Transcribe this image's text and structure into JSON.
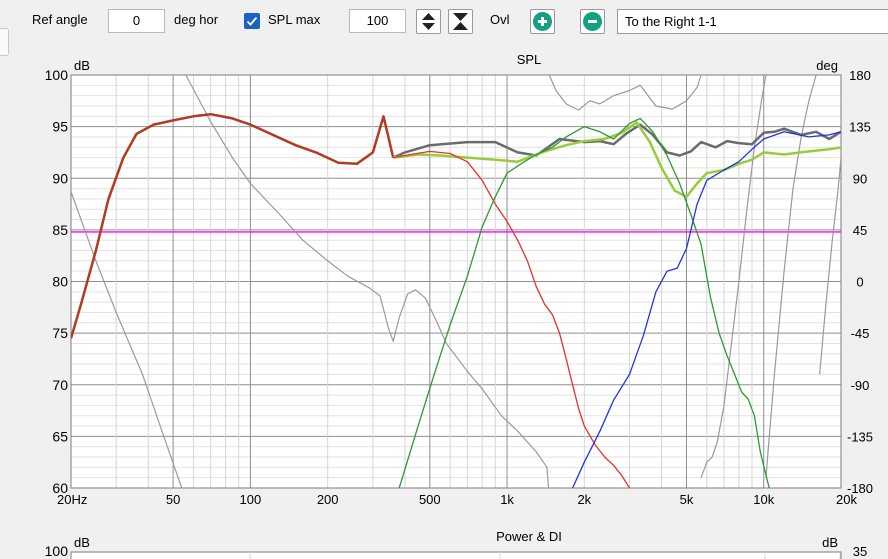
{
  "toolbar": {
    "ref_angle_label": "Ref angle",
    "ref_angle_value": "0",
    "deg_hor_label": "deg hor",
    "spl_max_checked": true,
    "spl_max_label": "SPL max",
    "spl_max_value": "100",
    "ovl_label": "Ovl",
    "overlay_select": "To the Right 1-1"
  },
  "colors": {
    "red": "#e8312a",
    "green": "#2e9a2e",
    "lightgreen": "#98cc3c",
    "gray_thick": "#6b6b6b",
    "blue": "#2236e0",
    "brown": "#b23a22",
    "magenta": "#ff00ff",
    "phase_gray": "#9a9a9a"
  },
  "chart_data": [
    {
      "type": "line",
      "title": "SPL",
      "ylabel": "dB",
      "y2label": "deg",
      "xscale": "log",
      "xlim": [
        20,
        20000
      ],
      "ylim": [
        60,
        100
      ],
      "y2lim": [
        -180,
        180
      ],
      "grid": true,
      "xtick_labels": [
        "20Hz",
        "50",
        "100",
        "200",
        "500",
        "1k",
        "2k",
        "5k",
        "10k",
        "20k"
      ],
      "ytick_labels": [
        "100",
        "95",
        "90",
        "85",
        "80",
        "75",
        "70",
        "65",
        "60"
      ],
      "y2tick_labels": [
        "180",
        "135",
        "90",
        "45",
        "0",
        "-45",
        "-90",
        "-135",
        "-180"
      ],
      "hline": {
        "y": 84.8,
        "color": "#ff00ff"
      },
      "series": [
        {
          "color": "#b23a22",
          "width": 2.5,
          "points": [
            [
              20,
              74.5
            ],
            [
              22,
              78
            ],
            [
              25,
              83
            ],
            [
              28,
              88
            ],
            [
              32,
              92
            ],
            [
              36,
              94.3
            ],
            [
              42,
              95.2
            ],
            [
              50,
              95.6
            ],
            [
              60,
              96
            ],
            [
              70,
              96.2
            ],
            [
              85,
              95.8
            ],
            [
              100,
              95.2
            ],
            [
              120,
              94.3
            ],
            [
              150,
              93.2
            ],
            [
              180,
              92.5
            ],
            [
              220,
              91.5
            ],
            [
              260,
              91.4
            ],
            [
              300,
              92.5
            ],
            [
              330,
              96
            ],
            [
              345,
              94
            ],
            [
              360,
              92
            ]
          ]
        },
        {
          "color": "#6b6b6b",
          "width": 2.5,
          "points": [
            [
              360,
              92
            ],
            [
              400,
              92.5
            ],
            [
              500,
              93.2
            ],
            [
              700,
              93.5
            ],
            [
              900,
              93.5
            ],
            [
              1100,
              92.5
            ],
            [
              1300,
              92.2
            ],
            [
              1600,
              93.8
            ],
            [
              2000,
              93.5
            ],
            [
              2300,
              93.6
            ],
            [
              2600,
              93.3
            ],
            [
              2900,
              94.3
            ],
            [
              3300,
              95.2
            ],
            [
              3700,
              94.2
            ],
            [
              4200,
              92.5
            ],
            [
              4700,
              92.2
            ],
            [
              5200,
              92.6
            ],
            [
              5700,
              93.5
            ],
            [
              6500,
              93
            ],
            [
              7200,
              93.6
            ],
            [
              8000,
              93.4
            ],
            [
              9000,
              93.3
            ],
            [
              10000,
              94.4
            ],
            [
              11000,
              94.5
            ],
            [
              12000,
              94.8
            ],
            [
              14000,
              94.2
            ],
            [
              16000,
              94.5
            ],
            [
              18000,
              93.8
            ],
            [
              20000,
              94.5
            ]
          ]
        },
        {
          "color": "#98cc3c",
          "width": 2.5,
          "points": [
            [
              360,
              92
            ],
            [
              450,
              92.3
            ],
            [
              550,
              92.2
            ],
            [
              700,
              92
            ],
            [
              900,
              91.8
            ],
            [
              1100,
              91.6
            ],
            [
              1400,
              92.6
            ],
            [
              1700,
              93.2
            ],
            [
              2000,
              93.6
            ],
            [
              2400,
              93.8
            ],
            [
              2800,
              94.4
            ],
            [
              3200,
              95.4
            ],
            [
              3600,
              93.5
            ],
            [
              4000,
              91
            ],
            [
              4500,
              88.8
            ],
            [
              5000,
              88.2
            ],
            [
              5500,
              89.5
            ],
            [
              6000,
              90.5
            ],
            [
              7000,
              90.8
            ],
            [
              8000,
              91.4
            ],
            [
              9000,
              91.8
            ],
            [
              10000,
              92.5
            ],
            [
              12000,
              92.3
            ],
            [
              15000,
              92.6
            ],
            [
              18000,
              92.8
            ],
            [
              20000,
              93
            ]
          ]
        },
        {
          "color": "#e8312a",
          "width": 1.3,
          "points": [
            [
              360,
              92
            ],
            [
              400,
              92.2
            ],
            [
              500,
              92.6
            ],
            [
              600,
              92.4
            ],
            [
              700,
              91.6
            ],
            [
              800,
              89.8
            ],
            [
              900,
              87.5
            ],
            [
              1000,
              85.8
            ],
            [
              1100,
              84
            ],
            [
              1200,
              82
            ],
            [
              1300,
              79.5
            ],
            [
              1400,
              77.8
            ],
            [
              1500,
              76.8
            ],
            [
              1600,
              75
            ],
            [
              1700,
              72.5
            ],
            [
              1800,
              70
            ],
            [
              1900,
              67.7
            ],
            [
              2000,
              66
            ],
            [
              2200,
              64.2
            ],
            [
              2400,
              63
            ],
            [
              2600,
              62.2
            ],
            [
              2800,
              61.2
            ],
            [
              3000,
              60
            ]
          ]
        },
        {
          "color": "#2e9a2e",
          "width": 1.3,
          "points": [
            [
              380,
              60
            ],
            [
              450,
              66
            ],
            [
              520,
              71
            ],
            [
              600,
              75.8
            ],
            [
              700,
              80.5
            ],
            [
              800,
              85.3
            ],
            [
              900,
              88.2
            ],
            [
              1000,
              90.5
            ],
            [
              1150,
              91.5
            ],
            [
              1300,
              92.3
            ],
            [
              1500,
              93
            ],
            [
              1700,
              94
            ],
            [
              2000,
              95
            ],
            [
              2300,
              94.5
            ],
            [
              2600,
              93.8
            ],
            [
              3000,
              95.3
            ],
            [
              3300,
              95.8
            ],
            [
              3700,
              94.5
            ],
            [
              4200,
              92.2
            ],
            [
              4700,
              89.5
            ],
            [
              5200,
              86.5
            ],
            [
              5700,
              83.6
            ],
            [
              6200,
              78.5
            ],
            [
              6700,
              75
            ],
            [
              7200,
              72.8
            ],
            [
              7700,
              71
            ],
            [
              8200,
              69.3
            ],
            [
              8700,
              68.6
            ],
            [
              9200,
              67
            ],
            [
              9700,
              63.5
            ],
            [
              10500,
              60
            ]
          ]
        },
        {
          "color": "#2236e0",
          "width": 1.3,
          "points": [
            [
              1800,
              60
            ],
            [
              2000,
              62.5
            ],
            [
              2300,
              65.5
            ],
            [
              2600,
              68.5
            ],
            [
              3000,
              71
            ],
            [
              3400,
              74.8
            ],
            [
              3800,
              79
            ],
            [
              4200,
              81
            ],
            [
              4600,
              81.3
            ],
            [
              5000,
              83.2
            ],
            [
              5500,
              87.5
            ],
            [
              6000,
              89.8
            ],
            [
              7000,
              90.8
            ],
            [
              8000,
              91.6
            ],
            [
              9000,
              92.8
            ],
            [
              10000,
              93.8
            ],
            [
              12000,
              94.5
            ],
            [
              15000,
              94
            ],
            [
              18000,
              94.2
            ],
            [
              20000,
              94.5
            ]
          ]
        },
        {
          "color": "#9a9a9a",
          "width": 1.2,
          "points": [
            [
              20,
              88.7
            ],
            [
              25,
              82
            ],
            [
              30,
              77
            ],
            [
              38,
              71
            ],
            [
              46,
              65
            ],
            [
              54,
              60
            ]
          ]
        },
        {
          "color": "#9a9a9a",
          "width": 1.2,
          "points": [
            [
              56,
              100
            ],
            [
              70,
              95.5
            ],
            [
              85,
              92
            ],
            [
              100,
              89.5
            ],
            [
              130,
              86.5
            ],
            [
              160,
              84
            ],
            [
              200,
              82
            ],
            [
              240,
              80.5
            ],
            [
              290,
              79.4
            ],
            [
              320,
              78.6
            ],
            [
              345,
              75.5
            ],
            [
              360,
              74.2
            ],
            [
              380,
              76.5
            ],
            [
              410,
              78.8
            ],
            [
              440,
              79.2
            ],
            [
              480,
              78.4
            ],
            [
              530,
              76.2
            ],
            [
              580,
              74
            ],
            [
              700,
              71.3
            ],
            [
              800,
              69.6
            ],
            [
              950,
              67
            ],
            [
              1100,
              65.5
            ],
            [
              1300,
              63.5
            ],
            [
              1430,
              62
            ],
            [
              1450,
              60
            ]
          ]
        },
        {
          "color": "#9a9a9a",
          "width": 1.2,
          "points": [
            [
              1460,
              100
            ],
            [
              1550,
              98.5
            ],
            [
              1700,
              97.2
            ],
            [
              1900,
              96.6
            ],
            [
              2100,
              97.5
            ],
            [
              2300,
              97.2
            ],
            [
              2600,
              98
            ],
            [
              3000,
              98.5
            ],
            [
              3300,
              99
            ],
            [
              3800,
              97
            ],
            [
              4400,
              96.7
            ],
            [
              5000,
              97.5
            ],
            [
              5500,
              98.8
            ],
            [
              5700,
              100
            ]
          ]
        },
        {
          "color": "#9a9a9a",
          "width": 1.2,
          "points": [
            [
              5700,
              61
            ],
            [
              6000,
              62.5
            ],
            [
              6300,
              63
            ],
            [
              6600,
              64.5
            ],
            [
              7000,
              68
            ],
            [
              7400,
              73
            ],
            [
              8000,
              80
            ],
            [
              8600,
              87
            ],
            [
              9200,
              93
            ],
            [
              9800,
              97.5
            ],
            [
              10200,
              100
            ]
          ]
        },
        {
          "color": "#9a9a9a",
          "width": 1.2,
          "points": [
            [
              10200,
              61
            ],
            [
              11000,
              71
            ],
            [
              12000,
              81
            ],
            [
              13000,
              89
            ],
            [
              14000,
              94
            ],
            [
              15000,
              97.5
            ],
            [
              16000,
              100
            ]
          ]
        },
        {
          "color": "#9a9a9a",
          "width": 1.2,
          "points": [
            [
              16500,
              71
            ],
            [
              17500,
              78
            ],
            [
              18500,
              84
            ],
            [
              19500,
              89
            ],
            [
              20000,
              92
            ]
          ]
        }
      ]
    },
    {
      "type": "line",
      "title": "Power & DI",
      "ylabel": "dB",
      "y2label": "dB",
      "ytick_labels": [
        "100"
      ],
      "y2tick_labels": [
        "35"
      ]
    }
  ]
}
